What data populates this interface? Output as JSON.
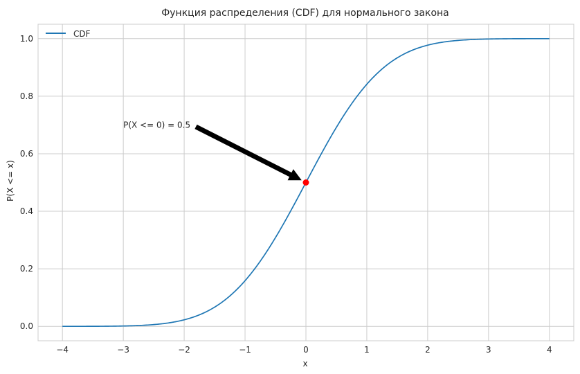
{
  "chart_data": {
    "type": "line",
    "title": "Функция распределения (CDF) для нормального закона",
    "xlabel": "x",
    "ylabel": "P(X <= x)",
    "xlim": [
      -4.4,
      4.4
    ],
    "ylim": [
      -0.05,
      1.05
    ],
    "xticks": [
      -4,
      -3,
      -2,
      -1,
      0,
      1,
      2,
      3,
      4
    ],
    "xtick_labels": [
      "−4",
      "−3",
      "−2",
      "−1",
      "0",
      "1",
      "2",
      "3",
      "4"
    ],
    "yticks": [
      0.0,
      0.2,
      0.4,
      0.6,
      0.8,
      1.0
    ],
    "ytick_labels": [
      "0.0",
      "0.2",
      "0.4",
      "0.6",
      "0.8",
      "1.0"
    ],
    "grid": true,
    "legend": {
      "position": "top-left",
      "entries": [
        {
          "label": "CDF",
          "color": "#1f77b4"
        }
      ]
    },
    "series": [
      {
        "name": "CDF",
        "color": "#1f77b4",
        "x": [
          -4.0,
          -3.5,
          -3.0,
          -2.5,
          -2.0,
          -1.75,
          -1.5,
          -1.25,
          -1.0,
          -0.75,
          -0.5,
          -0.25,
          0.0,
          0.25,
          0.5,
          0.75,
          1.0,
          1.25,
          1.5,
          1.75,
          2.0,
          2.5,
          3.0,
          3.5,
          4.0
        ],
        "y": [
          3e-05,
          0.0002,
          0.0013,
          0.0062,
          0.0228,
          0.0401,
          0.0668,
          0.1056,
          0.1587,
          0.2266,
          0.3085,
          0.4013,
          0.5,
          0.5987,
          0.6915,
          0.7734,
          0.8413,
          0.8944,
          0.9332,
          0.9599,
          0.9772,
          0.9938,
          0.9987,
          0.9998,
          0.99997
        ]
      }
    ],
    "highlight_point": {
      "x": 0,
      "y": 0.5,
      "color": "#ff0000"
    },
    "annotation": {
      "text": "P(X <= 0) = 0.5",
      "text_x": -3.0,
      "text_y": 0.7,
      "arrow_to_x": 0,
      "arrow_to_y": 0.5,
      "color": "#000000"
    }
  }
}
